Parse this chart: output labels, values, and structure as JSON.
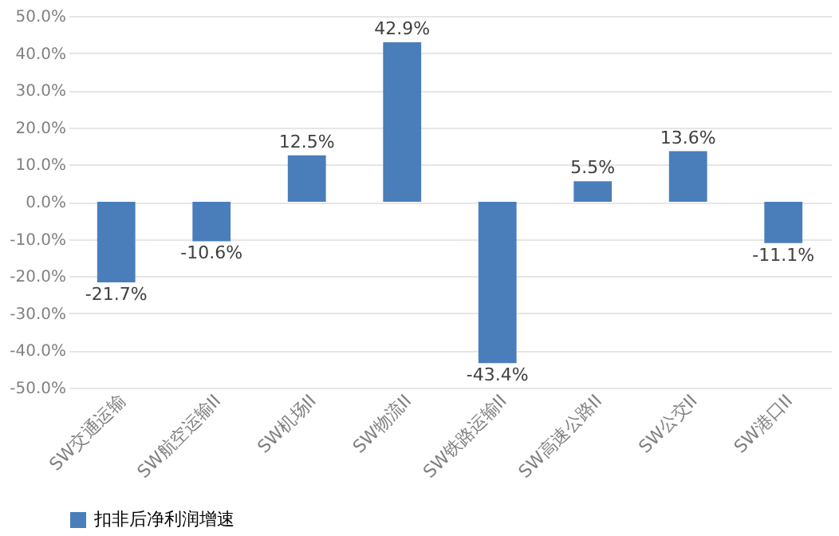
{
  "chart_data": {
    "type": "bar",
    "categories": [
      "SW交通运输",
      "SW航空运输II",
      "SW机场II",
      "SW物流II",
      "SW铁路运输II",
      "SW高速公路II",
      "SW公交II",
      "SW港口II"
    ],
    "series": [
      {
        "name": "扣非后净利润增速",
        "color": "#4a7ebb",
        "values": [
          -21.7,
          -10.6,
          12.5,
          42.9,
          -43.4,
          5.5,
          13.6,
          -11.1
        ],
        "value_labels": [
          "-21.7%",
          "-10.6%",
          "12.5%",
          "42.9%",
          "-43.4%",
          "5.5%",
          "13.6%",
          "-11.1%"
        ]
      }
    ],
    "ylim": [
      -50,
      50
    ],
    "yticks": [
      {
        "value": -50,
        "label": "-50.0%"
      },
      {
        "value": -40,
        "label": "-40.0%"
      },
      {
        "value": -30,
        "label": "-30.0%"
      },
      {
        "value": -20,
        "label": "-20.0%"
      },
      {
        "value": -10,
        "label": "-10.0%"
      },
      {
        "value": 0,
        "label": "0.0%"
      },
      {
        "value": 10,
        "label": "10.0%"
      },
      {
        "value": 20,
        "label": "20.0%"
      },
      {
        "value": 30,
        "label": "30.0%"
      },
      {
        "value": 40,
        "label": "40.0%"
      },
      {
        "value": 50,
        "label": "50.0%"
      }
    ],
    "grid": "y",
    "legend": "bottom"
  }
}
